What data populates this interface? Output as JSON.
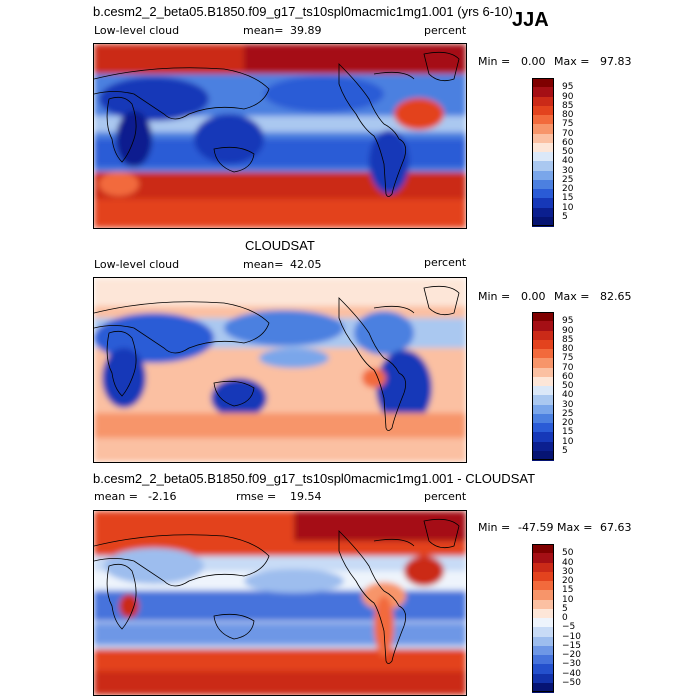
{
  "season": "JJA",
  "panels": [
    {
      "id": "model",
      "title": "b.cesm2_2_beta05.B1850.f09_g17_ts10spl0macmic1mg1.001 (yrs 6-10)",
      "left_label": "Low-level cloud",
      "stat_label": "mean=",
      "stat_value": "39.89",
      "stat2_label": "",
      "stat2_value": "",
      "unit": "percent",
      "min_label": "Min =",
      "min_value": "0.00",
      "max_label": "Max =",
      "max_value": "97.83",
      "scale": "cloud",
      "colorbar_labels": [
        "95",
        "90",
        "85",
        "80",
        "75",
        "70",
        "60",
        "50",
        "40",
        "30",
        "25",
        "20",
        "15",
        "10",
        "5"
      ]
    },
    {
      "id": "obs",
      "title": "CLOUDSAT",
      "left_label": "Low-level cloud",
      "stat_label": "mean=",
      "stat_value": "42.05",
      "stat2_label": "",
      "stat2_value": "",
      "unit": "percent",
      "min_label": "Min =",
      "min_value": "0.00",
      "max_label": "Max =",
      "max_value": "82.65",
      "scale": "cloud",
      "colorbar_labels": [
        "95",
        "90",
        "85",
        "80",
        "75",
        "70",
        "60",
        "50",
        "40",
        "30",
        "25",
        "20",
        "15",
        "10",
        "5"
      ]
    },
    {
      "id": "diff",
      "title": "b.cesm2_2_beta05.B1850.f09_g17_ts10spl0macmic1mg1.001 - CLOUDSAT",
      "left_label": "mean =",
      "stat_label": "",
      "stat_value": "-2.16",
      "stat2_label": "rmse =",
      "stat2_value": "19.54",
      "unit": "percent",
      "min_label": "Min =",
      "min_value": "-47.59",
      "max_label": "Max =",
      "max_value": "67.63",
      "scale": "diff",
      "colorbar_labels": [
        "50",
        "40",
        "30",
        "20",
        "15",
        "10",
        "5",
        "0",
        "−5",
        "−10",
        "−15",
        "−20",
        "−30",
        "−40",
        "−50"
      ]
    }
  ],
  "colors": {
    "cloud_scale": [
      "#7f0000",
      "#a50f15",
      "#cb2a18",
      "#e3431e",
      "#f26a3c",
      "#f7956a",
      "#fbc0a2",
      "#fde6d8",
      "#dbe8f8",
      "#aac8f0",
      "#7aa6ea",
      "#4c80e0",
      "#2a5bd6",
      "#1638b8",
      "#0b1f8f",
      "#061473"
    ],
    "diff_scale": [
      "#7f0000",
      "#a50f15",
      "#cb2a18",
      "#e3431e",
      "#f26a3c",
      "#f7956a",
      "#fbc0a2",
      "#fde6d8",
      "#eef4fc",
      "#c8dbf6",
      "#9dbdee",
      "#6e97e6",
      "#4673dc",
      "#2450cc",
      "#1232aa",
      "#061473"
    ]
  }
}
